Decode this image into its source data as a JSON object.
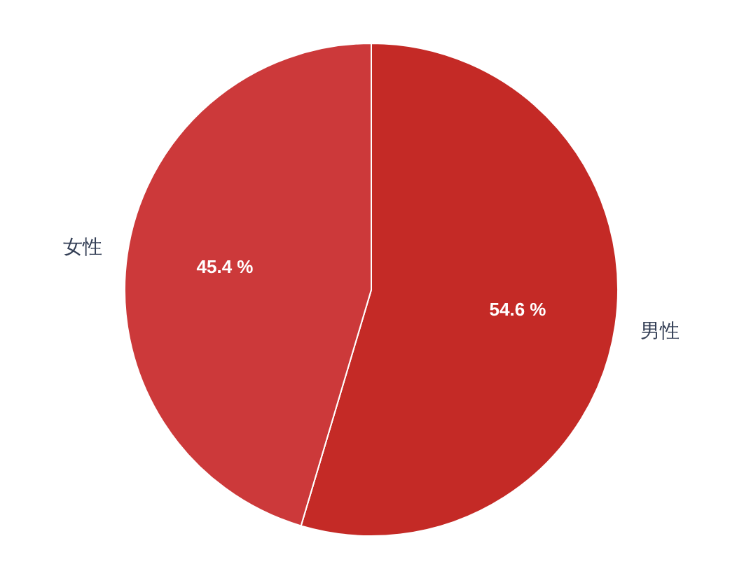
{
  "chart_data": {
    "type": "pie",
    "categories": [
      "男性",
      "女性"
    ],
    "values": [
      54.6,
      45.4
    ],
    "colors": [
      "#c42a26",
      "#cc393a"
    ],
    "value_labels": [
      "54.6 %",
      "45.4 %"
    ]
  }
}
